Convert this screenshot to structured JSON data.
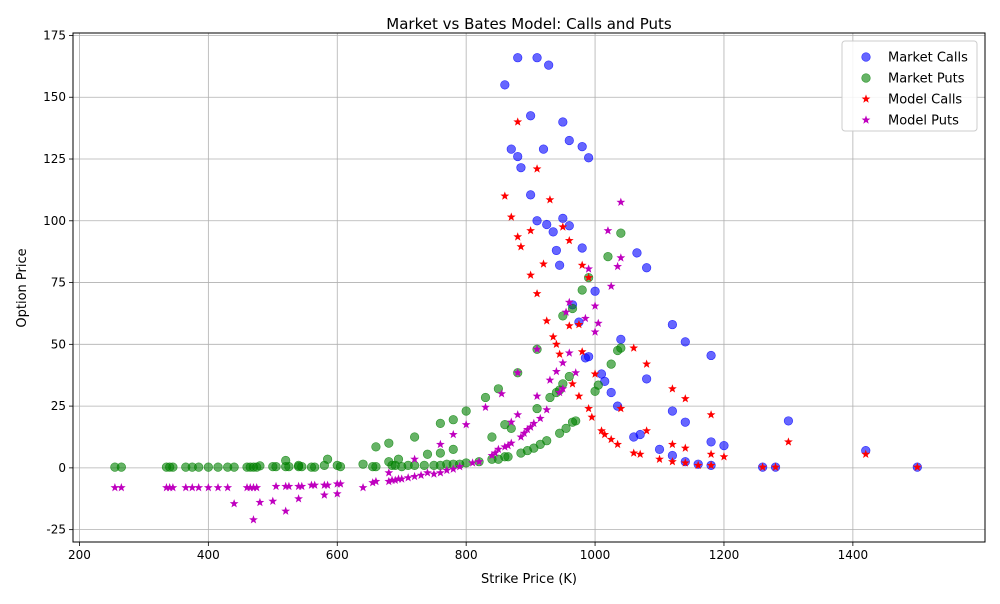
{
  "chart_data": {
    "type": "scatter",
    "title": "Market vs Bates Model: Calls and Puts",
    "xlabel": "Strike Price (K)",
    "ylabel": "Option Price",
    "xlim": [
      190,
      1605
    ],
    "ylim": [
      -30,
      176
    ],
    "x_ticks": [
      200,
      400,
      600,
      800,
      1000,
      1200,
      1400
    ],
    "y_ticks": [
      -25,
      0,
      25,
      50,
      75,
      100,
      125,
      150,
      175
    ],
    "grid": true,
    "legend_position": "top-right",
    "series": [
      {
        "name": "Market Calls",
        "marker": "circle",
        "color": "#0000ff",
        "points": [
          [
            860,
            155
          ],
          [
            880,
            166
          ],
          [
            910,
            166
          ],
          [
            928,
            163
          ],
          [
            900,
            142.5
          ],
          [
            950,
            140
          ],
          [
            960,
            132.5
          ],
          [
            980,
            130
          ],
          [
            870,
            129
          ],
          [
            920,
            129
          ],
          [
            880,
            126
          ],
          [
            990,
            125.5
          ],
          [
            885,
            121.5
          ],
          [
            900,
            110.5
          ],
          [
            910,
            100
          ],
          [
            950,
            101
          ],
          [
            925,
            98.5
          ],
          [
            960,
            98
          ],
          [
            935,
            95.5
          ],
          [
            940,
            88
          ],
          [
            980,
            89
          ],
          [
            945,
            82
          ],
          [
            1065,
            87
          ],
          [
            1080,
            81
          ],
          [
            1000,
            71.5
          ],
          [
            965,
            66
          ],
          [
            975,
            59
          ],
          [
            1120,
            58
          ],
          [
            1040,
            52
          ],
          [
            1140,
            51
          ],
          [
            990,
            45
          ],
          [
            985,
            44.5
          ],
          [
            1180,
            45.5
          ],
          [
            1010,
            38
          ],
          [
            1015,
            35
          ],
          [
            1080,
            36
          ],
          [
            1025,
            30.5
          ],
          [
            1035,
            25
          ],
          [
            1120,
            23
          ],
          [
            1300,
            19
          ],
          [
            1140,
            18.5
          ],
          [
            1070,
            13.5
          ],
          [
            1060,
            12.5
          ],
          [
            1180,
            10.5
          ],
          [
            1200,
            9
          ],
          [
            1100,
            7.5
          ],
          [
            1420,
            7
          ],
          [
            1120,
            5
          ],
          [
            1140,
            2.5
          ],
          [
            1160,
            1.5
          ],
          [
            1180,
            1
          ],
          [
            1260,
            0.3
          ],
          [
            1280,
            0.3
          ],
          [
            1500,
            0.3
          ]
        ]
      },
      {
        "name": "Market Puts",
        "marker": "circle",
        "color": "#008000",
        "points": [
          [
            255,
            0.3
          ],
          [
            265,
            0.3
          ],
          [
            335,
            0.3
          ],
          [
            340,
            0.3
          ],
          [
            345,
            0.3
          ],
          [
            365,
            0.3
          ],
          [
            375,
            0.3
          ],
          [
            385,
            0.3
          ],
          [
            400,
            0.3
          ],
          [
            415,
            0.3
          ],
          [
            430,
            0.3
          ],
          [
            440,
            0.3
          ],
          [
            460,
            0.3
          ],
          [
            465,
            0.3
          ],
          [
            470,
            0.3
          ],
          [
            475,
            0.3
          ],
          [
            480,
            0.8
          ],
          [
            500,
            0.5
          ],
          [
            505,
            0.5
          ],
          [
            520,
            0.5
          ],
          [
            525,
            0.5
          ],
          [
            540,
            0.5
          ],
          [
            545,
            0.5
          ],
          [
            560,
            0.3
          ],
          [
            565,
            0.3
          ],
          [
            580,
            1
          ],
          [
            585,
            3.5
          ],
          [
            600,
            1
          ],
          [
            605,
            0.5
          ],
          [
            640,
            1.5
          ],
          [
            655,
            0.5
          ],
          [
            660,
            0.5
          ],
          [
            680,
            2.5
          ],
          [
            685,
            1
          ],
          [
            690,
            1
          ],
          [
            700,
            0.5
          ],
          [
            710,
            1
          ],
          [
            720,
            1
          ],
          [
            735,
            1
          ],
          [
            750,
            1
          ],
          [
            760,
            1
          ],
          [
            770,
            1.5
          ],
          [
            780,
            1.5
          ],
          [
            790,
            1.5
          ],
          [
            800,
            2
          ],
          [
            820,
            2.5
          ],
          [
            840,
            3.5
          ],
          [
            850,
            3.5
          ],
          [
            860,
            4.5
          ],
          [
            865,
            4.5
          ],
          [
            885,
            6
          ],
          [
            895,
            7
          ],
          [
            905,
            8
          ],
          [
            915,
            9.5
          ],
          [
            925,
            11
          ],
          [
            945,
            14
          ],
          [
            955,
            16
          ],
          [
            965,
            18.5
          ],
          [
            970,
            19
          ],
          [
            520,
            3
          ],
          [
            540,
            1
          ],
          [
            660,
            8.5
          ],
          [
            680,
            10
          ],
          [
            695,
            3.5
          ],
          [
            720,
            12.5
          ],
          [
            740,
            5.5
          ],
          [
            760,
            18
          ],
          [
            760,
            6
          ],
          [
            780,
            19.5
          ],
          [
            780,
            7.5
          ],
          [
            800,
            23
          ],
          [
            830,
            28.5
          ],
          [
            850,
            32
          ],
          [
            840,
            12.5
          ],
          [
            860,
            17.5
          ],
          [
            870,
            16
          ],
          [
            880,
            38.5
          ],
          [
            910,
            48
          ],
          [
            910,
            24
          ],
          [
            930,
            28.5
          ],
          [
            940,
            30.5
          ],
          [
            945,
            31.5
          ],
          [
            950,
            34
          ],
          [
            960,
            37
          ],
          [
            965,
            64.5
          ],
          [
            950,
            61.5
          ],
          [
            980,
            72
          ],
          [
            990,
            77
          ],
          [
            1000,
            31
          ],
          [
            1005,
            33.5
          ],
          [
            1025,
            42
          ],
          [
            1035,
            47.5
          ],
          [
            1040,
            48.5
          ],
          [
            1020,
            85.5
          ],
          [
            1040,
            95
          ]
        ]
      },
      {
        "name": "Model Calls",
        "marker": "star",
        "color": "#ff0000",
        "points": [
          [
            880,
            140
          ],
          [
            910,
            121
          ],
          [
            860,
            110
          ],
          [
            930,
            108.5
          ],
          [
            870,
            101.5
          ],
          [
            900,
            96
          ],
          [
            950,
            97.5
          ],
          [
            880,
            93.5
          ],
          [
            960,
            92
          ],
          [
            885,
            89.5
          ],
          [
            920,
            82.5
          ],
          [
            980,
            82
          ],
          [
            900,
            78
          ],
          [
            990,
            77
          ],
          [
            910,
            70.5
          ],
          [
            925,
            59.5
          ],
          [
            960,
            57.5
          ],
          [
            975,
            58
          ],
          [
            935,
            53
          ],
          [
            940,
            50
          ],
          [
            1060,
            48.5
          ],
          [
            945,
            46
          ],
          [
            980,
            47
          ],
          [
            1080,
            42
          ],
          [
            1000,
            38
          ],
          [
            965,
            34
          ],
          [
            975,
            29
          ],
          [
            1120,
            32
          ],
          [
            1140,
            28
          ],
          [
            990,
            24
          ],
          [
            1040,
            24
          ],
          [
            995,
            20.5
          ],
          [
            1180,
            21.5
          ],
          [
            1010,
            15
          ],
          [
            1015,
            13.5
          ],
          [
            1080,
            15
          ],
          [
            1025,
            11.5
          ],
          [
            1035,
            9.5
          ],
          [
            1120,
            9.5
          ],
          [
            1300,
            10.5
          ],
          [
            1140,
            8
          ],
          [
            1060,
            6
          ],
          [
            1070,
            5.5
          ],
          [
            1180,
            5.5
          ],
          [
            1200,
            4.5
          ],
          [
            1100,
            3.5
          ],
          [
            1420,
            5.5
          ],
          [
            1120,
            2.5
          ],
          [
            1140,
            2
          ],
          [
            1160,
            1
          ],
          [
            1180,
            1
          ],
          [
            1260,
            0.3
          ],
          [
            1280,
            0.3
          ],
          [
            1500,
            0.3
          ]
        ]
      },
      {
        "name": "Model Puts",
        "marker": "star",
        "color": "#bf00bf",
        "points": [
          [
            255,
            -8
          ],
          [
            265,
            -8
          ],
          [
            335,
            -8
          ],
          [
            340,
            -8
          ],
          [
            345,
            -8
          ],
          [
            365,
            -8
          ],
          [
            375,
            -8
          ],
          [
            385,
            -8
          ],
          [
            400,
            -8
          ],
          [
            415,
            -8
          ],
          [
            430,
            -8
          ],
          [
            440,
            -14.5
          ],
          [
            460,
            -8
          ],
          [
            465,
            -8
          ],
          [
            470,
            -8
          ],
          [
            470,
            -21
          ],
          [
            475,
            -8
          ],
          [
            480,
            -14
          ],
          [
            500,
            -13.5
          ],
          [
            505,
            -7.5
          ],
          [
            520,
            -7.5
          ],
          [
            520,
            -17.5
          ],
          [
            525,
            -7.5
          ],
          [
            540,
            -7.5
          ],
          [
            540,
            -12.5
          ],
          [
            545,
            -7.5
          ],
          [
            560,
            -7
          ],
          [
            565,
            -7
          ],
          [
            580,
            -7
          ],
          [
            580,
            -11
          ],
          [
            585,
            -7
          ],
          [
            600,
            -6.5
          ],
          [
            600,
            -10.5
          ],
          [
            605,
            -6.5
          ],
          [
            640,
            -8
          ],
          [
            655,
            -6
          ],
          [
            660,
            -5.5
          ],
          [
            680,
            -5.5
          ],
          [
            680,
            -2
          ],
          [
            685,
            -5
          ],
          [
            690,
            -5
          ],
          [
            695,
            -4.5
          ],
          [
            700,
            -4.5
          ],
          [
            710,
            -4
          ],
          [
            720,
            -3.5
          ],
          [
            720,
            3.5
          ],
          [
            730,
            -3
          ],
          [
            740,
            -2
          ],
          [
            750,
            -2.5
          ],
          [
            760,
            -2
          ],
          [
            760,
            9.5
          ],
          [
            770,
            -1
          ],
          [
            780,
            -0.5
          ],
          [
            780,
            13.5
          ],
          [
            790,
            0.5
          ],
          [
            800,
            17.5
          ],
          [
            810,
            2
          ],
          [
            820,
            2.5
          ],
          [
            830,
            24.5
          ],
          [
            840,
            5
          ],
          [
            845,
            6
          ],
          [
            850,
            7.5
          ],
          [
            855,
            30
          ],
          [
            860,
            8.5
          ],
          [
            865,
            9
          ],
          [
            870,
            18.5
          ],
          [
            870,
            10
          ],
          [
            880,
            21.5
          ],
          [
            880,
            38.5
          ],
          [
            885,
            12.5
          ],
          [
            890,
            14
          ],
          [
            895,
            15.5
          ],
          [
            900,
            16.5
          ],
          [
            905,
            18
          ],
          [
            910,
            29
          ],
          [
            910,
            48
          ],
          [
            915,
            20
          ],
          [
            925,
            23.5
          ],
          [
            930,
            35.5
          ],
          [
            940,
            39
          ],
          [
            945,
            30.5
          ],
          [
            950,
            42.5
          ],
          [
            950,
            32
          ],
          [
            955,
            63
          ],
          [
            960,
            46.5
          ],
          [
            960,
            67
          ],
          [
            970,
            38.5
          ],
          [
            985,
            60.5
          ],
          [
            990,
            80.5
          ],
          [
            1000,
            65.5
          ],
          [
            1000,
            55
          ],
          [
            1005,
            58.5
          ],
          [
            1020,
            96
          ],
          [
            1025,
            73.5
          ],
          [
            1035,
            81.5
          ],
          [
            1040,
            85
          ],
          [
            1040,
            107.5
          ]
        ]
      }
    ]
  }
}
